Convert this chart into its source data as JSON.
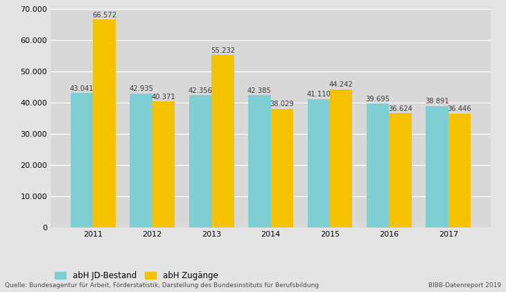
{
  "years": [
    "2011",
    "2012",
    "2013",
    "2014",
    "2015",
    "2016",
    "2017"
  ],
  "jd_bestand": [
    43041,
    42935,
    42356,
    42385,
    41110,
    39695,
    38891
  ],
  "zugaenge": [
    66572,
    40371,
    55232,
    38029,
    44242,
    36624,
    36446
  ],
  "color_jd": "#7ecfd4",
  "color_zug": "#f5c200",
  "background_color": "#e4e4e4",
  "plot_bg_color": "#d8d8d8",
  "ylim": [
    0,
    70000
  ],
  "yticks": [
    0,
    10000,
    20000,
    30000,
    40000,
    50000,
    60000,
    70000
  ],
  "ytick_labels": [
    "0",
    "10.000",
    "20.000",
    "30.000",
    "40.000",
    "50.000",
    "60.000",
    "70.000"
  ],
  "legend_jd": "abH JD-Bestand",
  "legend_zug": "abH Zugänge",
  "source_text": "Quelle: Bundesagentur für Arbeit, Förderstatistik, Darstellung des Bundesinstituts für Berufsbildung",
  "bibb_text": "BIBB-Datenreport 2019",
  "bar_width": 0.38,
  "label_fontsize": 7.2,
  "tick_fontsize": 8.0,
  "legend_fontsize": 8.5,
  "source_fontsize": 6.5,
  "label_color": "#3a3a3a"
}
